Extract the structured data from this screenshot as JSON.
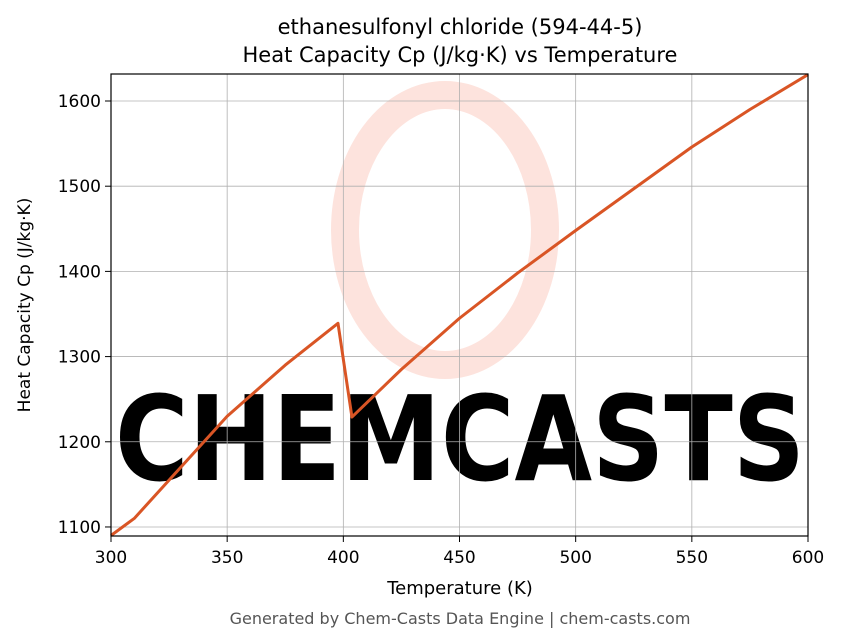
{
  "chart_data": {
    "type": "line",
    "title": "ethanesulfonyl chloride (594-44-5)",
    "subtitle": "Heat Capacity Cp (J/kg·K) vs Temperature",
    "x_label": "Temperature (K)",
    "y_label": "Heat Capacity Cp (J/kg·K)",
    "footer": "Generated by Chem-Casts Data Engine | chem-casts.com",
    "watermark": "CHEMCASTS",
    "x": [
      300,
      310,
      325,
      350,
      375,
      397.7,
      403.7,
      425,
      450,
      475,
      500,
      525,
      550,
      575,
      600
    ],
    "series": [
      {
        "name": "Cp",
        "color": "#d95525",
        "values": [
          1090,
          1110,
          1155,
          1230,
          1290,
          1339,
          1229,
          1285,
          1345,
          1398,
          1448,
          1497,
          1546,
          1590,
          1631
        ]
      }
    ],
    "xlim": [
      300,
      600
    ],
    "ylim": [
      1089.4,
      1631.7
    ],
    "xticks": [
      300,
      350,
      400,
      450,
      500,
      550,
      600
    ],
    "yticks": [
      1100,
      1200,
      1300,
      1400,
      1500,
      1600
    ],
    "grid": true
  }
}
